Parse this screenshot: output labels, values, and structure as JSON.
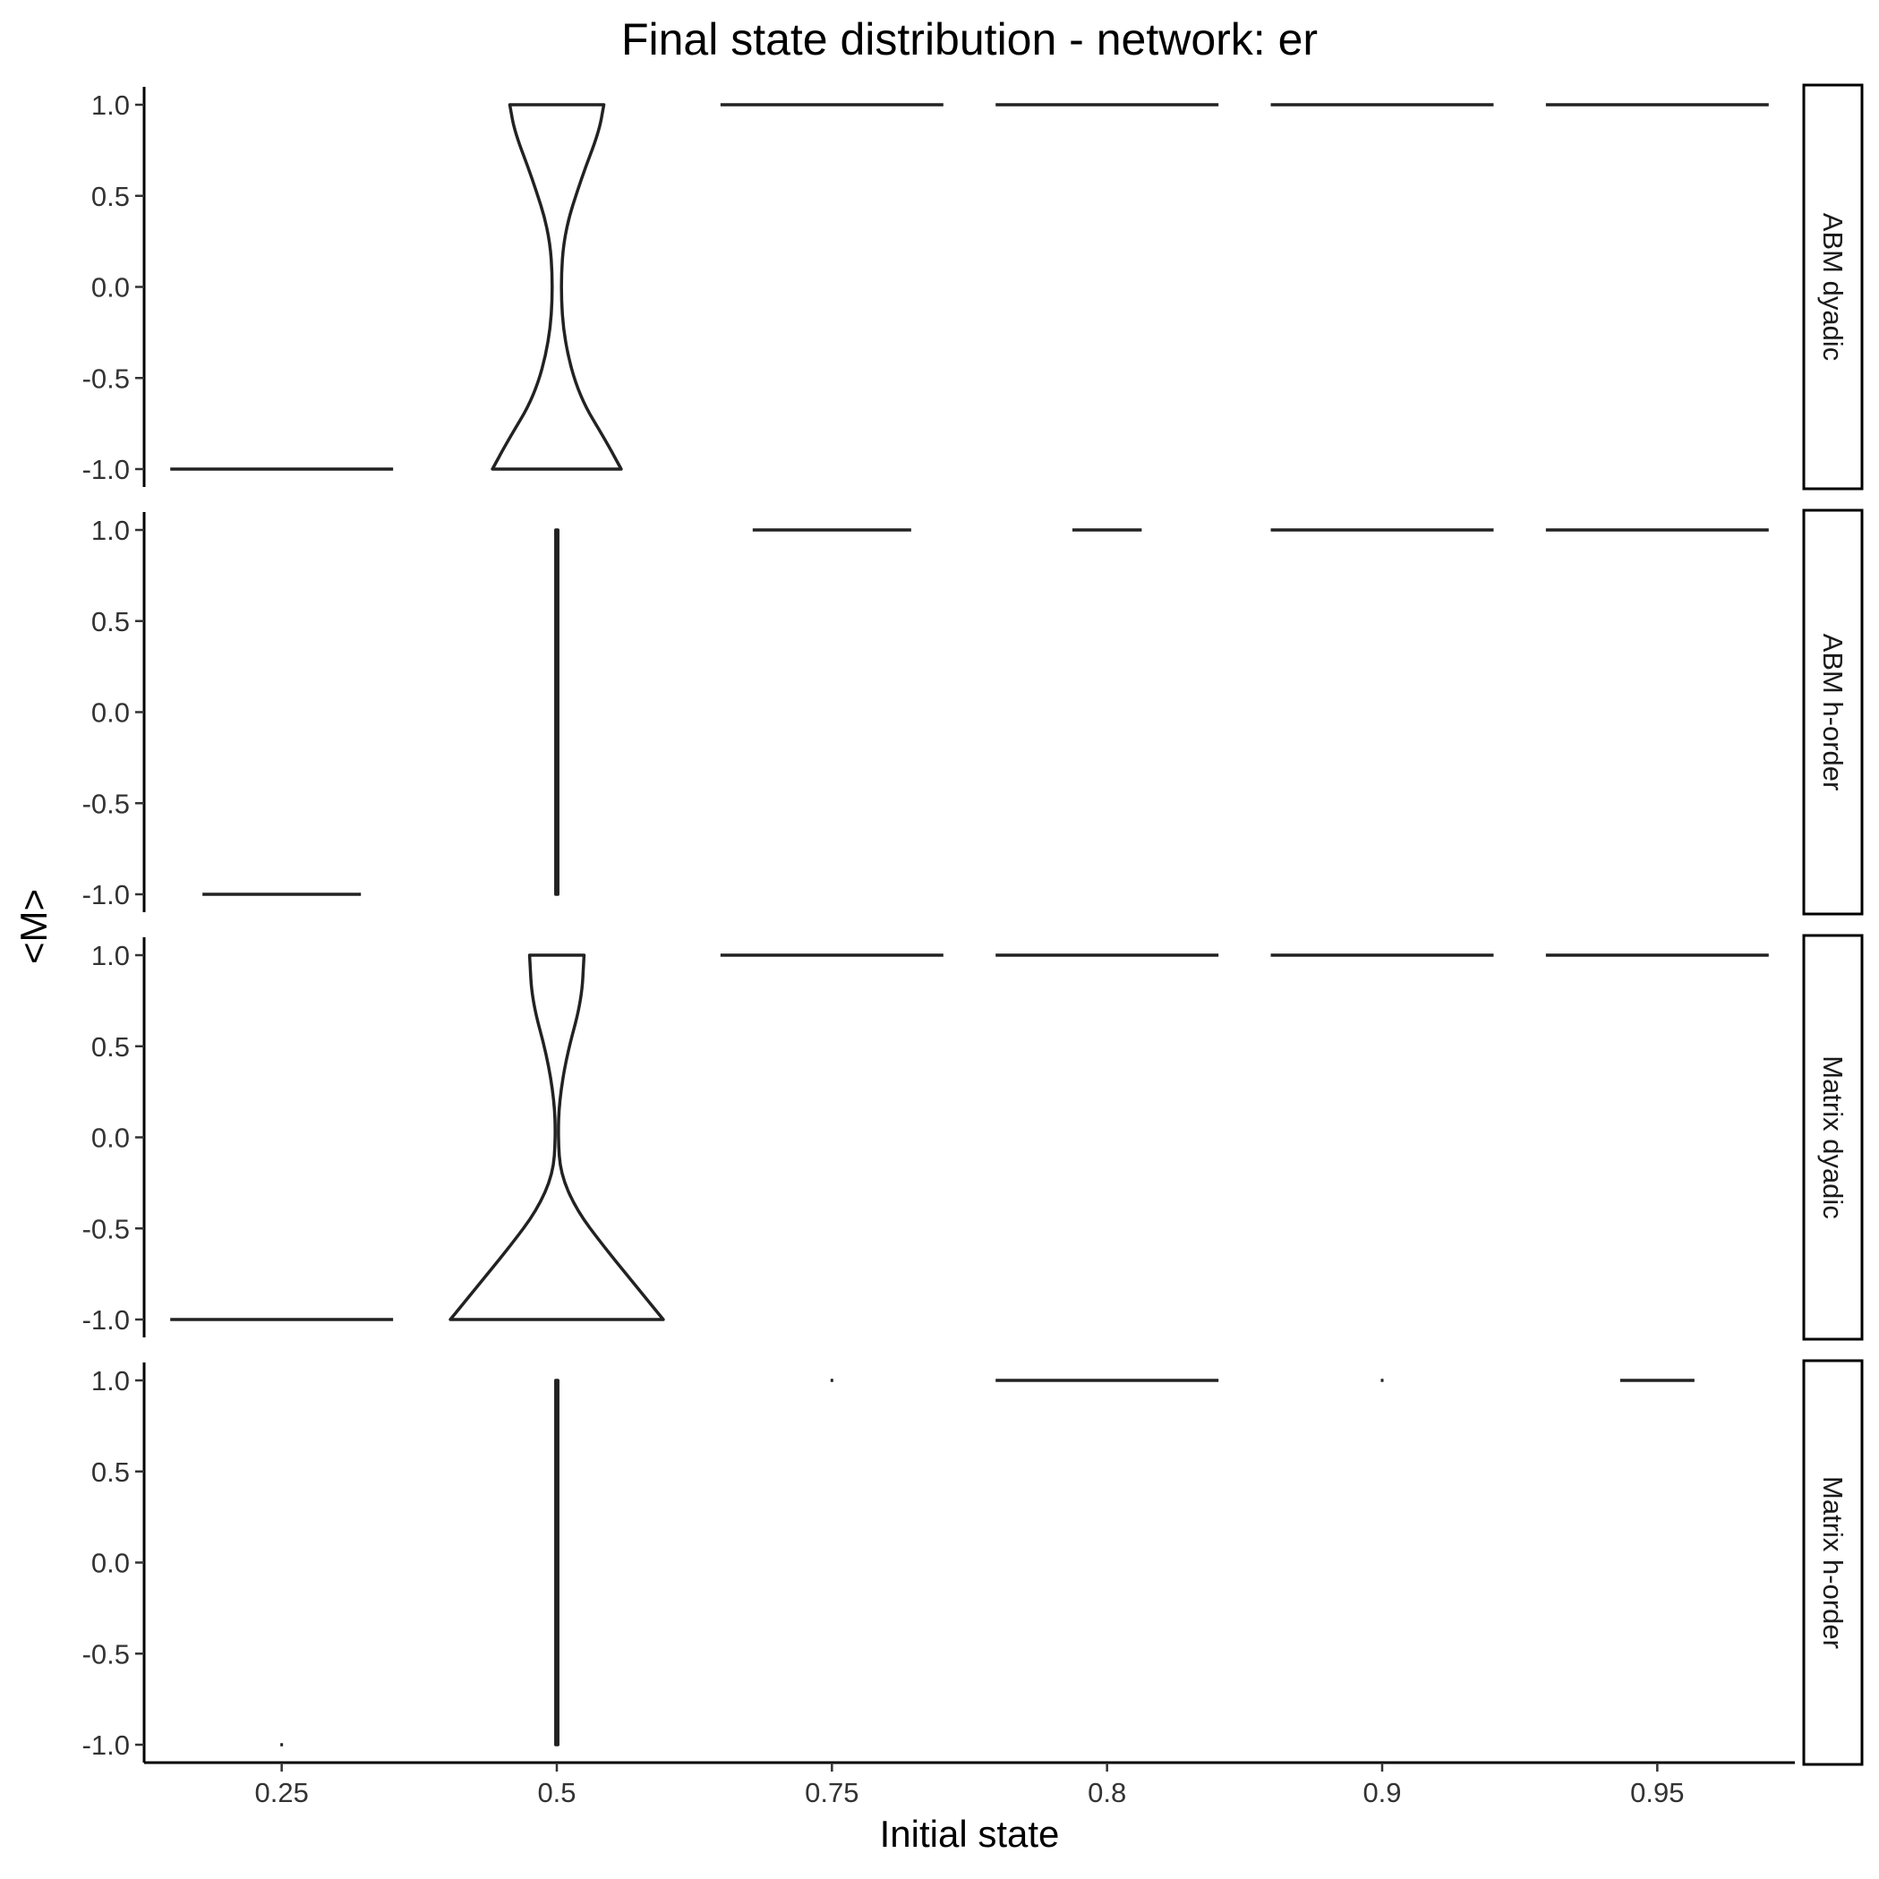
{
  "chart_data": {
    "type": "violin",
    "title": "Final state distribution - network: er",
    "xlabel": "Initial state",
    "ylabel": "<M>",
    "categories": [
      "0.25",
      "0.5",
      "0.75",
      "0.8",
      "0.9",
      "0.95"
    ],
    "ylim": [
      -1.0,
      1.0
    ],
    "yticks": [
      "-1.0",
      "-0.5",
      "0.0",
      "0.5",
      "1.0"
    ],
    "grid": false,
    "legend": "none",
    "line_color": "#222222",
    "panels": [
      {
        "name": "ABM dyadic",
        "violins": [
          {
            "category": "0.25",
            "profile": [
              [
                -1.0,
                0.9
              ]
            ]
          },
          {
            "category": "0.5",
            "profile": [
              [
                -1.0,
                0.52
              ],
              [
                -0.85,
                0.4
              ],
              [
                -0.6,
                0.18
              ],
              [
                -0.3,
                0.06
              ],
              [
                0.0,
                0.03
              ],
              [
                0.3,
                0.06
              ],
              [
                0.6,
                0.2
              ],
              [
                0.85,
                0.34
              ],
              [
                1.0,
                0.38
              ]
            ]
          },
          {
            "category": "0.75",
            "profile": [
              [
                1.0,
                0.9
              ]
            ]
          },
          {
            "category": "0.8",
            "profile": [
              [
                1.0,
                0.9
              ]
            ]
          },
          {
            "category": "0.9",
            "profile": [
              [
                1.0,
                0.9
              ]
            ]
          },
          {
            "category": "0.95",
            "profile": [
              [
                1.0,
                0.9
              ]
            ]
          }
        ]
      },
      {
        "name": "ABM h-order",
        "violins": [
          {
            "category": "0.25",
            "profile": [
              [
                -1.0,
                0.64
              ]
            ]
          },
          {
            "category": "0.5",
            "profile": [
              [
                -1.0,
                0.006
              ],
              [
                1.0,
                0.006
              ]
            ]
          },
          {
            "category": "0.75",
            "profile": [
              [
                1.0,
                0.64
              ]
            ]
          },
          {
            "category": "0.8",
            "profile": [
              [
                1.0,
                0.28
              ]
            ]
          },
          {
            "category": "0.9",
            "profile": [
              [
                1.0,
                0.9
              ]
            ]
          },
          {
            "category": "0.95",
            "profile": [
              [
                1.0,
                0.9
              ]
            ]
          }
        ]
      },
      {
        "name": "Matrix dyadic",
        "violins": [
          {
            "category": "0.25",
            "profile": [
              [
                -1.0,
                0.9
              ]
            ]
          },
          {
            "category": "0.5",
            "profile": [
              [
                -1.0,
                0.86
              ],
              [
                -0.85,
                0.68
              ],
              [
                -0.6,
                0.38
              ],
              [
                -0.4,
                0.16
              ],
              [
                -0.2,
                0.03
              ],
              [
                0.0,
                0.01
              ],
              [
                0.2,
                0.02
              ],
              [
                0.45,
                0.08
              ],
              [
                0.75,
                0.2
              ],
              [
                1.0,
                0.22
              ]
            ]
          },
          {
            "category": "0.75",
            "profile": [
              [
                1.0,
                0.9
              ]
            ]
          },
          {
            "category": "0.8",
            "profile": [
              [
                1.0,
                0.9
              ]
            ]
          },
          {
            "category": "0.9",
            "profile": [
              [
                1.0,
                0.9
              ]
            ]
          },
          {
            "category": "0.95",
            "profile": [
              [
                1.0,
                0.9
              ]
            ]
          }
        ]
      },
      {
        "name": "Matrix h-order",
        "violins": [
          {
            "category": "0.25",
            "profile": [
              [
                -1.0,
                0.01
              ]
            ]
          },
          {
            "category": "0.5",
            "profile": [
              [
                -1.0,
                0.006
              ],
              [
                1.0,
                0.006
              ]
            ]
          },
          {
            "category": "0.75",
            "profile": [
              [
                1.0,
                0.01
              ]
            ]
          },
          {
            "category": "0.8",
            "profile": [
              [
                1.0,
                0.9
              ]
            ]
          },
          {
            "category": "0.9",
            "profile": [
              [
                1.0,
                0.01
              ]
            ]
          },
          {
            "category": "0.95",
            "profile": [
              [
                1.0,
                0.3
              ]
            ]
          }
        ]
      }
    ]
  }
}
